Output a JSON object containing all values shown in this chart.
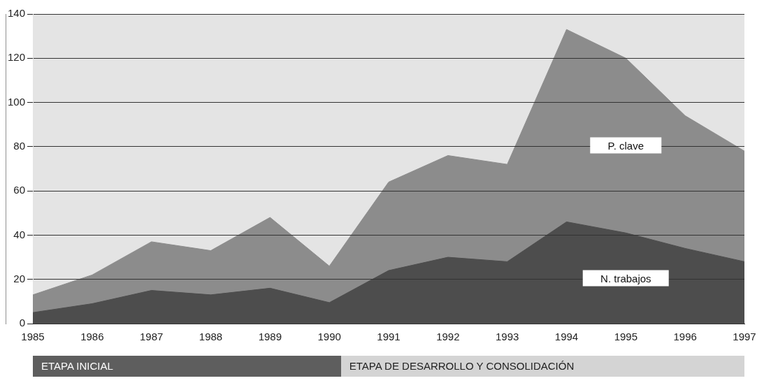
{
  "chart_data": {
    "type": "area",
    "x": [
      1985,
      1986,
      1987,
      1988,
      1989,
      1990,
      1991,
      1992,
      1993,
      1994,
      1995,
      1996,
      1997
    ],
    "series": [
      {
        "name": "P. clave",
        "color": "#8c8c8c",
        "values": [
          13,
          22,
          37,
          33,
          48,
          26,
          64,
          76,
          72,
          133,
          120,
          94,
          78
        ]
      },
      {
        "name": "N. trabajos",
        "color": "#4d4d4d",
        "values": [
          5,
          9,
          15,
          13,
          16,
          9.5,
          24,
          30,
          28,
          46,
          41,
          34,
          28
        ]
      }
    ],
    "xlim": [
      1985,
      1997
    ],
    "xticks": [
      1985,
      1986,
      1987,
      1988,
      1989,
      1990,
      1991,
      1992,
      1993,
      1994,
      1995,
      1996,
      1997
    ],
    "ylim": [
      0,
      140
    ],
    "yticks": [
      0,
      20,
      40,
      60,
      80,
      100,
      120,
      140
    ],
    "grid": "y",
    "legend": false,
    "annotations": [
      "ETAPA INICIAL",
      "ETAPA DE DESARROLLO Y CONSOLIDACIÓN"
    ]
  }
}
